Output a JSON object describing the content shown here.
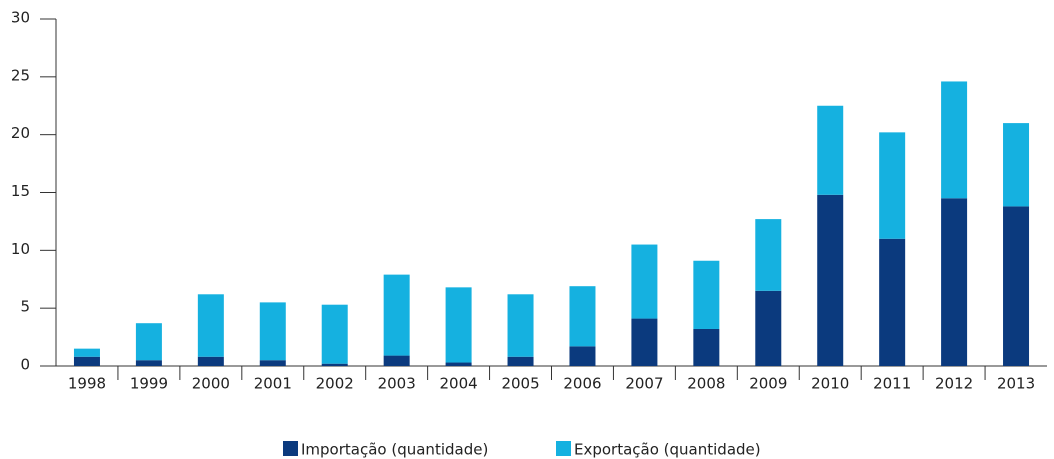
{
  "chart_data": {
    "type": "bar",
    "stacked": true,
    "categories": [
      "1998",
      "1999",
      "2000",
      "2001",
      "2002",
      "2003",
      "2004",
      "2005",
      "2006",
      "2007",
      "2008",
      "2009",
      "2010",
      "2011",
      "2012",
      "2013"
    ],
    "series": [
      {
        "name": "Importação (quantidade)",
        "color": "#0b3a7e",
        "values": [
          0.8,
          0.5,
          0.8,
          0.5,
          0.2,
          0.9,
          0.3,
          0.8,
          1.7,
          4.1,
          3.2,
          6.5,
          14.8,
          11.0,
          14.5,
          13.8
        ]
      },
      {
        "name": "Exportação (quantidade)",
        "color": "#15b1e0",
        "values": [
          0.7,
          3.2,
          5.4,
          5.0,
          5.1,
          7.0,
          6.5,
          5.4,
          5.2,
          6.4,
          5.9,
          6.2,
          7.7,
          9.2,
          10.1,
          7.2
        ]
      }
    ],
    "ylim": [
      0,
      30
    ],
    "yticks": [
      0,
      5,
      10,
      15,
      20,
      25,
      30
    ],
    "grid": false,
    "legend": "bottom"
  }
}
